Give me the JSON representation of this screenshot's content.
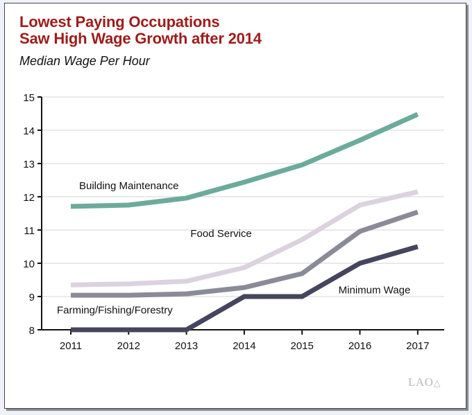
{
  "chart_data": {
    "type": "line",
    "title": "Lowest Paying Occupations Saw High Wage Growth after 2014",
    "title_lines": [
      "Lowest Paying Occupations",
      "Saw High Wage Growth after 2014"
    ],
    "subtitle": "Median Wage Per Hour",
    "xlabel": "",
    "ylabel": "",
    "x": [
      2011,
      2012,
      2013,
      2014,
      2015,
      2016,
      2017
    ],
    "x_tick_labels": [
      "2011",
      "2012",
      "2013",
      "2014",
      "2015",
      "2016",
      "2017"
    ],
    "y_ticks": [
      8,
      9,
      10,
      11,
      12,
      13,
      14,
      15
    ],
    "y_tick_labels": [
      "8",
      "9",
      "10",
      "11",
      "12",
      "13",
      "14",
      "15"
    ],
    "ylim": [
      8,
      15
    ],
    "grid": true,
    "legend": "inline labels",
    "series": [
      {
        "name": "Building Maintenance",
        "color": "#6cab9b",
        "values": [
          11.71,
          11.75,
          11.96,
          12.44,
          12.96,
          13.7,
          14.48
        ]
      },
      {
        "name": "Food Service",
        "color": "#dcd2df",
        "values": [
          9.35,
          9.38,
          9.46,
          9.87,
          10.71,
          11.75,
          12.15
        ]
      },
      {
        "name": "Farming/Fishing/Forestry",
        "color": "#8b8a98",
        "values": [
          9.04,
          9.04,
          9.08,
          9.27,
          9.69,
          10.96,
          11.54
        ]
      },
      {
        "name": "Minimum Wage",
        "color": "#46455e",
        "values": [
          8,
          8,
          8,
          9,
          9,
          10,
          10.5
        ]
      }
    ]
  },
  "footer": {
    "logo": "LAO"
  }
}
